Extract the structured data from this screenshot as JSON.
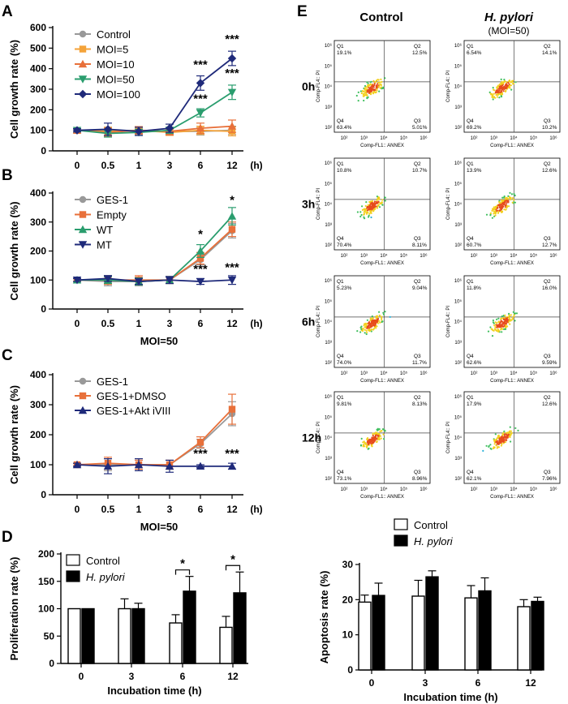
{
  "figure": {
    "panel_labels": {
      "A": "A",
      "B": "B",
      "C": "C",
      "D": "D",
      "E": "E"
    },
    "time_unit": "(h)",
    "moi_label": "MOI=50"
  },
  "chart_data": [
    {
      "id": "A",
      "type": "line",
      "ylabel": "Cell growth rate (%)",
      "xlabel": "(h)",
      "categories": [
        "0",
        "0.5",
        "1",
        "3",
        "6",
        "12"
      ],
      "ylim": [
        0,
        600
      ],
      "yticks": [
        0,
        100,
        200,
        300,
        400,
        500,
        600
      ],
      "legend": "top-left",
      "series": [
        {
          "name": "Control",
          "color": "#999999",
          "marker": "circle",
          "values": [
            100,
            100,
            95,
            95,
            95,
            100
          ],
          "err": [
            8,
            15,
            15,
            15,
            18,
            20
          ]
        },
        {
          "name": "MOI=5",
          "color": "#f4a339",
          "marker": "square",
          "values": [
            100,
            95,
            100,
            90,
            100,
            95
          ],
          "err": [
            8,
            20,
            15,
            15,
            20,
            22
          ]
        },
        {
          "name": "MOI=10",
          "color": "#e8703a",
          "marker": "triangle-up",
          "values": [
            100,
            90,
            100,
            95,
            110,
            120
          ],
          "err": [
            8,
            20,
            18,
            18,
            25,
            30
          ]
        },
        {
          "name": "MOI=50",
          "color": "#2a9d6e",
          "marker": "triangle-down",
          "values": [
            100,
            85,
            90,
            100,
            185,
            285
          ],
          "err": [
            8,
            18,
            15,
            15,
            20,
            35
          ]
        },
        {
          "name": "MOI=100",
          "color": "#1f2a7a",
          "marker": "diamond",
          "values": [
            100,
            105,
            95,
            110,
            330,
            450
          ],
          "err": [
            8,
            30,
            20,
            20,
            35,
            35
          ]
        }
      ],
      "annotations": [
        {
          "x": "6",
          "y": 400,
          "text": "***"
        },
        {
          "x": "6",
          "y": 235,
          "text": "***"
        },
        {
          "x": "12",
          "y": 525,
          "text": "***"
        },
        {
          "x": "12",
          "y": 360,
          "text": "***"
        }
      ]
    },
    {
      "id": "B",
      "type": "line",
      "ylabel": "Cell growth rate (%)",
      "xlabel": "(h)",
      "subtitle": "MOI=50",
      "categories": [
        "0",
        "0.5",
        "1",
        "3",
        "6",
        "12"
      ],
      "ylim": [
        0,
        400
      ],
      "yticks": [
        0,
        100,
        200,
        300,
        400
      ],
      "legend": "top-left",
      "series": [
        {
          "name": "GES-1",
          "color": "#999999",
          "marker": "circle",
          "values": [
            100,
            95,
            95,
            100,
            170,
            270
          ],
          "err": [
            5,
            15,
            15,
            12,
            18,
            25
          ]
        },
        {
          "name": "Empty",
          "color": "#e8703a",
          "marker": "square",
          "values": [
            100,
            100,
            100,
            100,
            175,
            275
          ],
          "err": [
            5,
            15,
            15,
            12,
            20,
            25
          ]
        },
        {
          "name": "WT",
          "color": "#2a9d6e",
          "marker": "triangle-up",
          "values": [
            100,
            100,
            95,
            100,
            200,
            320
          ],
          "err": [
            5,
            12,
            12,
            12,
            22,
            30
          ]
        },
        {
          "name": "MT",
          "color": "#1f2a7a",
          "marker": "triangle-down",
          "values": [
            100,
            105,
            95,
            100,
            95,
            100
          ],
          "err": [
            5,
            10,
            10,
            12,
            10,
            15
          ]
        }
      ],
      "annotations": [
        {
          "x": "6",
          "y": 245,
          "text": "*"
        },
        {
          "x": "6",
          "y": 125,
          "text": "***"
        },
        {
          "x": "12",
          "y": 362,
          "text": "*"
        },
        {
          "x": "12",
          "y": 130,
          "text": "***"
        }
      ]
    },
    {
      "id": "C",
      "type": "line",
      "ylabel": "Cell growth rate (%)",
      "xlabel": "(h)",
      "subtitle": "MOI=50",
      "categories": [
        "0",
        "0.5",
        "1",
        "3",
        "6",
        "12"
      ],
      "ylim": [
        0,
        400
      ],
      "yticks": [
        0,
        100,
        200,
        300,
        400
      ],
      "legend": "top-left",
      "series": [
        {
          "name": "GES-1",
          "color": "#999999",
          "marker": "circle",
          "values": [
            100,
            100,
            100,
            100,
            170,
            270
          ],
          "err": [
            5,
            20,
            15,
            15,
            15,
            40
          ]
        },
        {
          "name": "GES-1+DMSO",
          "color": "#e8703a",
          "marker": "square",
          "values": [
            100,
            105,
            100,
            100,
            175,
            285
          ],
          "err": [
            5,
            20,
            15,
            15,
            18,
            50
          ]
        },
        {
          "name": "GES-1+Akt iVIII",
          "color": "#1f2a7a",
          "marker": "triangle-up",
          "values": [
            100,
            95,
            100,
            95,
            95,
            95
          ],
          "err": [
            5,
            25,
            20,
            20,
            5,
            10
          ]
        }
      ],
      "annotations": [
        {
          "x": "6",
          "y": 125,
          "text": "***"
        },
        {
          "x": "12",
          "y": 125,
          "text": "***"
        }
      ]
    },
    {
      "id": "D",
      "type": "bar",
      "ylabel": "Proliferation rate (%)",
      "xlabel": "Incubation time (h)",
      "categories": [
        "0",
        "3",
        "6",
        "12"
      ],
      "ylim": [
        0,
        200
      ],
      "yticks": [
        0,
        50,
        100,
        150,
        200
      ],
      "legend": "top-left",
      "series": [
        {
          "name": "Control",
          "color": "#ffffff",
          "values": [
            100,
            100,
            74,
            66
          ],
          "err": [
            0,
            18,
            15,
            20
          ]
        },
        {
          "name": "H. pylori",
          "color": "#000000",
          "values": [
            100,
            100,
            132,
            129
          ],
          "err": [
            0,
            10,
            27,
            38
          ]
        }
      ],
      "annotations": [
        {
          "x": "6",
          "text": "*"
        },
        {
          "x": "12",
          "text": "*"
        }
      ]
    },
    {
      "id": "E-bar",
      "type": "bar",
      "ylabel": "Apoptosis rate (%)",
      "xlabel": "Incubation time (h)",
      "categories": [
        "0",
        "3",
        "6",
        "12"
      ],
      "ylim": [
        0,
        30
      ],
      "yticks": [
        0,
        10,
        20,
        30
      ],
      "legend": "top-center",
      "series": [
        {
          "name": "Control",
          "color": "#ffffff",
          "values": [
            19.3,
            21,
            20.5,
            18
          ],
          "err": [
            2,
            4.5,
            3.5,
            2
          ]
        },
        {
          "name": "H. pylori",
          "color": "#000000",
          "values": [
            21.2,
            26.5,
            22.5,
            19.5
          ],
          "err": [
            3.5,
            1.7,
            3.7,
            1.2
          ]
        }
      ]
    }
  ],
  "flow": {
    "col_headers": {
      "control": "Control",
      "hp": "H. pylori",
      "hp_sub": "(MOI=50)"
    },
    "rows": [
      {
        "time": "0h",
        "control": {
          "q1": "19.1%",
          "q2": "12.5%",
          "q3": "5.01%",
          "q4": "63.4%"
        },
        "hp": {
          "q1": "6.54%",
          "q2": "14.1%",
          "q3": "10.2%",
          "q4": "69.2%"
        }
      },
      {
        "time": "3h",
        "control": {
          "q1": "10.8%",
          "q2": "10.7%",
          "q3": "8.11%",
          "q4": "70.4%"
        },
        "hp": {
          "q1": "13.9%",
          "q2": "12.6%",
          "q3": "12.7%",
          "q4": "60.7%"
        }
      },
      {
        "time": "6h",
        "control": {
          "q1": "5.23%",
          "q2": "9.04%",
          "q3": "11.7%",
          "q4": "74.0%"
        },
        "hp": {
          "q1": "11.8%",
          "q2": "16.0%",
          "q3": "9.59%",
          "q4": "62.6%"
        }
      },
      {
        "time": "12h",
        "control": {
          "q1": "9.81%",
          "q2": "8.13%",
          "q3": "8.96%",
          "q4": "73.1%"
        },
        "hp": {
          "q1": "17.9%",
          "q2": "12.6%",
          "q3": "7.96%",
          "q4": "62.1%"
        }
      }
    ],
    "quadrant_names": {
      "q1": "Q1",
      "q2": "Q2",
      "q3": "Q3",
      "q4": "Q4"
    },
    "x_axis_label": "Comp-FL1:: ANNEX",
    "y_axis_label": "Comp-FL4:: PI",
    "tick_labels": [
      "10²",
      "10³",
      "10⁴",
      "10⁵",
      "10⁶"
    ],
    "tick_label_100": "10¹"
  }
}
